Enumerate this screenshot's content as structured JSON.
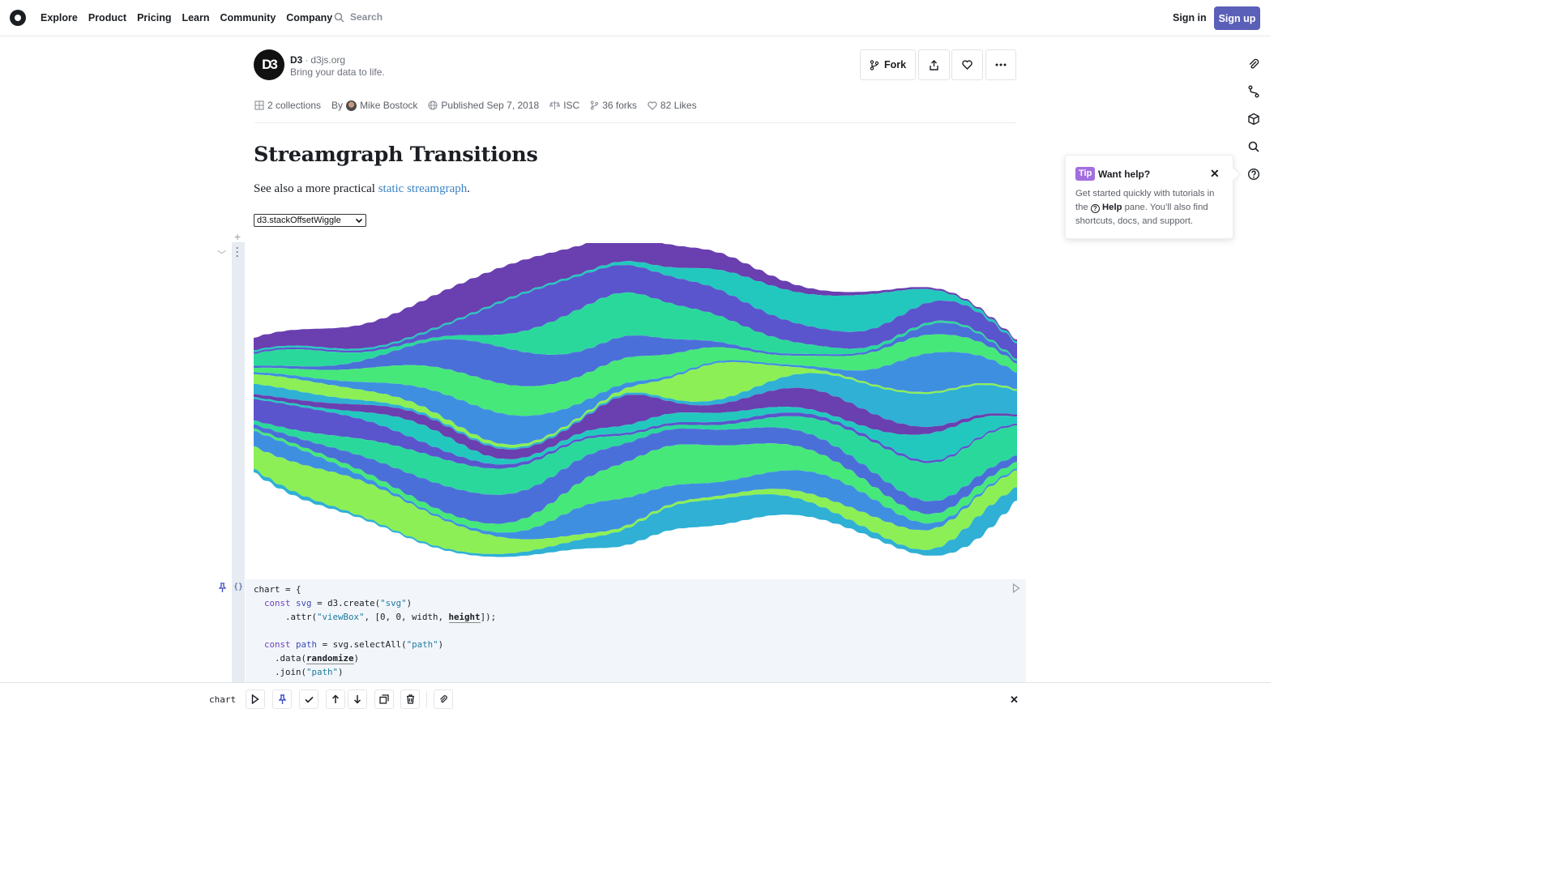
{
  "nav": {
    "items": [
      "Explore",
      "Product",
      "Pricing",
      "Learn",
      "Community",
      "Company"
    ],
    "search_placeholder": "Search",
    "sign_in": "Sign in",
    "sign_up": "Sign up"
  },
  "owner": {
    "logo_text": "D3",
    "name": "D3",
    "separator": "·",
    "site": "d3js.org",
    "tagline": "Bring your data to life."
  },
  "actions": {
    "fork_label": "Fork",
    "share_icon": "share-icon",
    "like_icon": "heart-icon",
    "more_icon": "more-icon"
  },
  "meta": {
    "collections": "2 collections",
    "by_label": "By",
    "author": "Mike Bostock",
    "published": "Published Sep 7, 2018",
    "license": "ISC",
    "forks": "36 forks",
    "likes": "82 Likes"
  },
  "notebook": {
    "title": "Streamgraph Transitions",
    "desc_prefix": "See also a more practical ",
    "desc_link": "static streamgraph",
    "desc_suffix": ".",
    "offset_select": "d3.stackOffsetWiggle"
  },
  "code_lines": [
    "chart = {",
    "  const svg = d3.create(\"svg\")",
    "      .attr(\"viewBox\", [0, 0, width, height]);",
    "",
    "  const path = svg.selectAll(\"path\")",
    "    .data(randomize)",
    "    .join(\"path\")"
  ],
  "tip": {
    "badge": "Tip",
    "title": "Want help?",
    "body_1": "Get started quickly with tutorials in the",
    "help_word": "Help",
    "body_2": "pane. You’ll also find shortcuts, docs, and support."
  },
  "bottom": {
    "cell_name": "chart"
  },
  "colors": {
    "brand_button": "#5a5fb8",
    "link": "#3b82c4",
    "tip_badge": "#a36ee0",
    "stream_palette": [
      "#6a3fb0",
      "#5a55cc",
      "#4b6fd8",
      "#3f8fe0",
      "#2fb0d4",
      "#22c8be",
      "#2bd89c",
      "#46e87a",
      "#8cef55"
    ]
  }
}
